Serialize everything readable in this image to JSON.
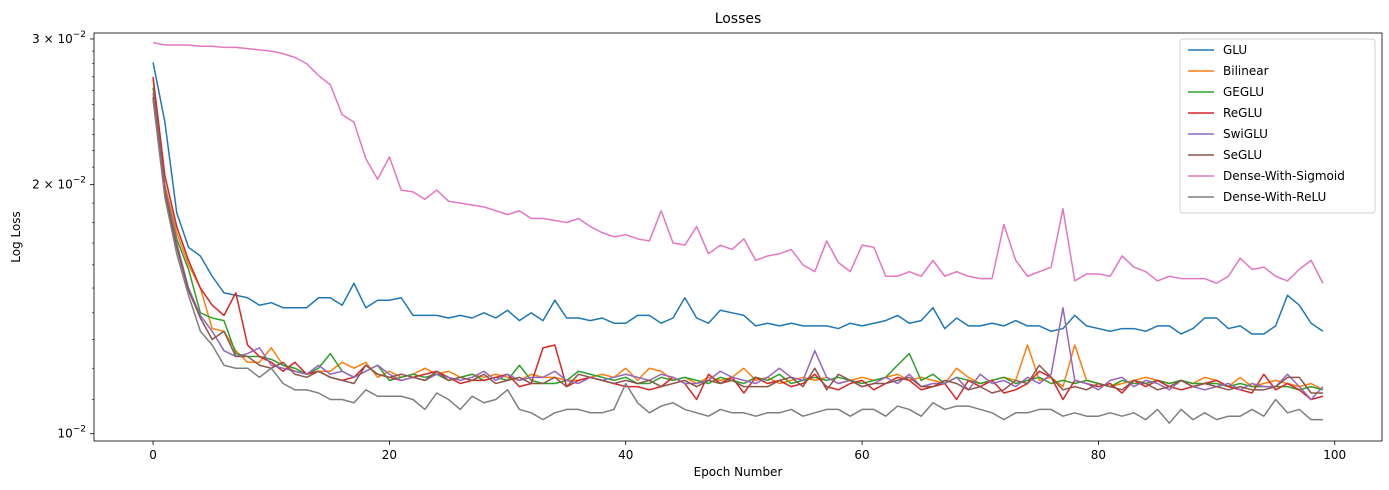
{
  "chart_data": {
    "type": "line",
    "title": "Losses",
    "xlabel": "Epoch Number",
    "ylabel": "Log Loss",
    "yscale": "log",
    "xlim": [
      -5,
      104
    ],
    "ylim": [
      0.0098,
      0.0305
    ],
    "xticks": [
      0,
      20,
      40,
      60,
      80,
      100
    ],
    "xtick_labels": [
      "0",
      "20",
      "40",
      "60",
      "80",
      "100"
    ],
    "yticks": [
      0.03,
      0.02,
      0.01
    ],
    "ytick_labels": [
      {
        "base": "3 × 10",
        "exp": "−2"
      },
      {
        "base": "2 × 10",
        "exp": "−2"
      },
      {
        "base": "10",
        "exp": "−2"
      }
    ],
    "legend_position": "top-right",
    "grid": false,
    "series": [
      {
        "name": "GLU",
        "color": "#1f77b4",
        "values": [
          0.0281,
          0.0238,
          0.0185,
          0.0168,
          0.0164,
          0.0155,
          0.0148,
          0.0147,
          0.0146,
          0.0143,
          0.0144,
          0.0142,
          0.0142,
          0.0142,
          0.0146,
          0.0146,
          0.0143,
          0.0152,
          0.0142,
          0.0145,
          0.0145,
          0.0146,
          0.0139,
          0.0139,
          0.0139,
          0.0138,
          0.0139,
          0.0138,
          0.014,
          0.0138,
          0.0141,
          0.0137,
          0.014,
          0.0137,
          0.0145,
          0.0138,
          0.0138,
          0.0137,
          0.0138,
          0.0136,
          0.0136,
          0.0139,
          0.0139,
          0.0136,
          0.0138,
          0.0146,
          0.0138,
          0.0136,
          0.0141,
          0.014,
          0.0139,
          0.0135,
          0.0136,
          0.0135,
          0.0136,
          0.0135,
          0.0135,
          0.0135,
          0.0134,
          0.0136,
          0.0135,
          0.0136,
          0.0137,
          0.0139,
          0.0136,
          0.0137,
          0.0142,
          0.0134,
          0.0138,
          0.0135,
          0.0135,
          0.0136,
          0.0135,
          0.0137,
          0.0135,
          0.0135,
          0.0133,
          0.0134,
          0.0139,
          0.0135,
          0.0134,
          0.0133,
          0.0134,
          0.0134,
          0.0133,
          0.0135,
          0.0135,
          0.0132,
          0.0134,
          0.0138,
          0.0138,
          0.0134,
          0.0135,
          0.0132,
          0.0132,
          0.0135,
          0.0147,
          0.0143,
          0.0136,
          0.0133
        ]
      },
      {
        "name": "Bilinear",
        "color": "#ff7f0e",
        "values": [
          0.0268,
          0.02,
          0.0175,
          0.016,
          0.015,
          0.0134,
          0.0133,
          0.0126,
          0.0122,
          0.0122,
          0.0127,
          0.0121,
          0.0119,
          0.0118,
          0.0119,
          0.0119,
          0.0122,
          0.012,
          0.0122,
          0.0117,
          0.0119,
          0.0117,
          0.0118,
          0.012,
          0.0118,
          0.0119,
          0.0117,
          0.0118,
          0.0117,
          0.0118,
          0.0117,
          0.0116,
          0.0118,
          0.0117,
          0.0117,
          0.0116,
          0.0116,
          0.0117,
          0.0118,
          0.0117,
          0.012,
          0.0116,
          0.012,
          0.0119,
          0.0116,
          0.0117,
          0.0115,
          0.0117,
          0.0116,
          0.0117,
          0.012,
          0.0116,
          0.0117,
          0.0115,
          0.0116,
          0.0117,
          0.0116,
          0.0117,
          0.0115,
          0.0116,
          0.0117,
          0.0116,
          0.0117,
          0.0118,
          0.0116,
          0.0117,
          0.0116,
          0.0115,
          0.012,
          0.0117,
          0.0115,
          0.0116,
          0.0117,
          0.0116,
          0.0128,
          0.0116,
          0.0117,
          0.0114,
          0.0128,
          0.0116,
          0.0115,
          0.0114,
          0.0115,
          0.0116,
          0.0117,
          0.0116,
          0.0115,
          0.0116,
          0.0115,
          0.0117,
          0.0116,
          0.0114,
          0.0117,
          0.0114,
          0.0115,
          0.0116,
          0.0115,
          0.0114,
          0.0115,
          0.0113
        ]
      },
      {
        "name": "GEGLU",
        "color": "#2ca02c",
        "values": [
          0.0262,
          0.0198,
          0.0172,
          0.0158,
          0.014,
          0.0138,
          0.0137,
          0.0125,
          0.0124,
          0.0124,
          0.0123,
          0.0121,
          0.012,
          0.0118,
          0.012,
          0.0125,
          0.0119,
          0.0117,
          0.0119,
          0.0121,
          0.0116,
          0.0117,
          0.0118,
          0.0117,
          0.0118,
          0.0116,
          0.0117,
          0.0118,
          0.0116,
          0.0117,
          0.0116,
          0.0121,
          0.0116,
          0.0115,
          0.0115,
          0.0116,
          0.0119,
          0.0118,
          0.0117,
          0.0116,
          0.0117,
          0.0115,
          0.0115,
          0.0117,
          0.0116,
          0.0117,
          0.0116,
          0.0115,
          0.0117,
          0.0116,
          0.0115,
          0.0117,
          0.0116,
          0.0118,
          0.0115,
          0.0116,
          0.0117,
          0.0116,
          0.0117,
          0.0116,
          0.0115,
          0.0116,
          0.0117,
          0.0121,
          0.0125,
          0.0116,
          0.0118,
          0.0115,
          0.0117,
          0.0116,
          0.0115,
          0.0116,
          0.0117,
          0.0115,
          0.0116,
          0.0117,
          0.0115,
          0.0116,
          0.0115,
          0.0116,
          0.0115,
          0.0114,
          0.0116,
          0.0115,
          0.0115,
          0.0116,
          0.0115,
          0.0116,
          0.0115,
          0.0115,
          0.0115,
          0.0114,
          0.0115,
          0.0114,
          0.0114,
          0.0114,
          0.0114,
          0.0113,
          0.0114,
          0.0113
        ]
      },
      {
        "name": "ReGLU",
        "color": "#d62728",
        "values": [
          0.027,
          0.0205,
          0.0178,
          0.0162,
          0.015,
          0.0143,
          0.0139,
          0.0148,
          0.0128,
          0.0124,
          0.0122,
          0.0119,
          0.0122,
          0.0118,
          0.0119,
          0.0117,
          0.0116,
          0.0117,
          0.0121,
          0.0118,
          0.0117,
          0.0116,
          0.0117,
          0.0118,
          0.0119,
          0.0117,
          0.0115,
          0.0116,
          0.0116,
          0.0117,
          0.0118,
          0.0114,
          0.0115,
          0.0127,
          0.0128,
          0.0114,
          0.0116,
          0.0117,
          0.0116,
          0.0115,
          0.0114,
          0.0114,
          0.0113,
          0.0114,
          0.0117,
          0.0115,
          0.011,
          0.0118,
          0.0115,
          0.0117,
          0.0112,
          0.0117,
          0.0115,
          0.0116,
          0.0114,
          0.0115,
          0.0118,
          0.0114,
          0.0113,
          0.0115,
          0.0116,
          0.0113,
          0.0115,
          0.0117,
          0.0116,
          0.0113,
          0.0114,
          0.0115,
          0.011,
          0.0116,
          0.0114,
          0.0116,
          0.0112,
          0.0113,
          0.0115,
          0.0119,
          0.0117,
          0.011,
          0.0116,
          0.0115,
          0.0114,
          0.0115,
          0.0112,
          0.0116,
          0.0114,
          0.0116,
          0.0114,
          0.0113,
          0.0114,
          0.0115,
          0.0116,
          0.0114,
          0.0113,
          0.0112,
          0.0118,
          0.0113,
          0.0115,
          0.0113,
          0.011,
          0.0111
        ]
      },
      {
        "name": "SwiGLU",
        "color": "#9467bd",
        "values": [
          0.0258,
          0.0198,
          0.017,
          0.015,
          0.0139,
          0.0133,
          0.0126,
          0.0124,
          0.0125,
          0.0127,
          0.0121,
          0.012,
          0.0119,
          0.0118,
          0.0121,
          0.0118,
          0.0119,
          0.0117,
          0.0119,
          0.0121,
          0.0118,
          0.0116,
          0.0117,
          0.0116,
          0.0118,
          0.0117,
          0.0116,
          0.0117,
          0.0119,
          0.0116,
          0.0118,
          0.0116,
          0.0117,
          0.0117,
          0.0119,
          0.0116,
          0.0115,
          0.0117,
          0.0116,
          0.0117,
          0.0118,
          0.0117,
          0.0116,
          0.0118,
          0.0117,
          0.0115,
          0.0115,
          0.0116,
          0.0119,
          0.0117,
          0.0116,
          0.0115,
          0.0117,
          0.012,
          0.0117,
          0.0116,
          0.0126,
          0.0117,
          0.0115,
          0.0116,
          0.0114,
          0.0115,
          0.0117,
          0.0115,
          0.0118,
          0.0114,
          0.0115,
          0.0115,
          0.0117,
          0.0113,
          0.0118,
          0.0115,
          0.0116,
          0.0114,
          0.0117,
          0.0115,
          0.0118,
          0.0142,
          0.0116,
          0.0115,
          0.0113,
          0.0116,
          0.0117,
          0.0114,
          0.0116,
          0.0115,
          0.0113,
          0.0116,
          0.0114,
          0.0113,
          0.0114,
          0.0115,
          0.0113,
          0.0115,
          0.0114,
          0.0114,
          0.0118,
          0.0114,
          0.011,
          0.0114
        ]
      },
      {
        "name": "SeGLU",
        "color": "#8c564b",
        "values": [
          0.0255,
          0.0196,
          0.0168,
          0.0149,
          0.0138,
          0.013,
          0.0133,
          0.0124,
          0.0124,
          0.0121,
          0.012,
          0.0122,
          0.0118,
          0.0117,
          0.0119,
          0.0117,
          0.0116,
          0.0115,
          0.0121,
          0.0118,
          0.0117,
          0.0118,
          0.0117,
          0.0116,
          0.0119,
          0.0116,
          0.0117,
          0.0116,
          0.0118,
          0.0115,
          0.0116,
          0.0117,
          0.0115,
          0.0115,
          0.0117,
          0.0114,
          0.0118,
          0.0117,
          0.0116,
          0.0115,
          0.0116,
          0.0115,
          0.0116,
          0.0114,
          0.0115,
          0.0116,
          0.0114,
          0.0116,
          0.0115,
          0.0116,
          0.0114,
          0.0114,
          0.0114,
          0.0116,
          0.0117,
          0.0114,
          0.012,
          0.0113,
          0.0118,
          0.0116,
          0.0114,
          0.0115,
          0.0115,
          0.0116,
          0.0117,
          0.0114,
          0.0114,
          0.0116,
          0.0115,
          0.0113,
          0.0114,
          0.0112,
          0.0113,
          0.0116,
          0.0115,
          0.0121,
          0.0117,
          0.0113,
          0.0114,
          0.0113,
          0.0115,
          0.0114,
          0.0113,
          0.0116,
          0.0115,
          0.0113,
          0.0114,
          0.0116,
          0.0114,
          0.0115,
          0.0114,
          0.0113,
          0.0114,
          0.0113,
          0.0113,
          0.0114,
          0.0117,
          0.0117,
          0.0112,
          0.0112
        ]
      },
      {
        "name": "Dense-With-Sigmoid",
        "color": "#e377c2",
        "values": [
          0.0297,
          0.0295,
          0.0295,
          0.0295,
          0.0294,
          0.0294,
          0.0293,
          0.0293,
          0.0292,
          0.0291,
          0.029,
          0.0288,
          0.0285,
          0.028,
          0.0271,
          0.0264,
          0.0243,
          0.0238,
          0.0215,
          0.0203,
          0.0216,
          0.0197,
          0.0196,
          0.0192,
          0.0197,
          0.0191,
          0.019,
          0.0189,
          0.0188,
          0.0186,
          0.0184,
          0.0186,
          0.0182,
          0.0182,
          0.0181,
          0.018,
          0.0182,
          0.0178,
          0.0175,
          0.0173,
          0.0174,
          0.0172,
          0.0171,
          0.0186,
          0.017,
          0.0169,
          0.0178,
          0.0165,
          0.0169,
          0.0167,
          0.0172,
          0.0162,
          0.0164,
          0.0165,
          0.0167,
          0.016,
          0.0157,
          0.0171,
          0.0161,
          0.0157,
          0.0169,
          0.0168,
          0.0155,
          0.0155,
          0.0157,
          0.0155,
          0.0162,
          0.0155,
          0.0157,
          0.0155,
          0.0154,
          0.0154,
          0.0179,
          0.0162,
          0.0155,
          0.0157,
          0.0159,
          0.0187,
          0.0153,
          0.0156,
          0.0156,
          0.0155,
          0.0164,
          0.0159,
          0.0157,
          0.0153,
          0.0155,
          0.0154,
          0.0154,
          0.0154,
          0.0152,
          0.0155,
          0.0163,
          0.0158,
          0.0159,
          0.0155,
          0.0153,
          0.0158,
          0.0162,
          0.0152
        ]
      },
      {
        "name": "Dense-With-ReLU",
        "color": "#7f7f7f",
        "values": [
          0.0253,
          0.0193,
          0.0165,
          0.0147,
          0.0133,
          0.0128,
          0.0121,
          0.012,
          0.012,
          0.0117,
          0.012,
          0.0115,
          0.0113,
          0.0113,
          0.0112,
          0.011,
          0.011,
          0.0109,
          0.0113,
          0.0111,
          0.0111,
          0.0111,
          0.011,
          0.0107,
          0.0112,
          0.011,
          0.0107,
          0.0111,
          0.0109,
          0.011,
          0.0113,
          0.0107,
          0.0106,
          0.0104,
          0.0106,
          0.0107,
          0.0107,
          0.0106,
          0.0106,
          0.0107,
          0.0115,
          0.0109,
          0.0106,
          0.0108,
          0.0109,
          0.0107,
          0.0106,
          0.0105,
          0.0107,
          0.0106,
          0.0106,
          0.0105,
          0.0106,
          0.0106,
          0.0107,
          0.0105,
          0.0106,
          0.0107,
          0.0107,
          0.0105,
          0.0107,
          0.0107,
          0.0105,
          0.0108,
          0.0107,
          0.0105,
          0.0109,
          0.0107,
          0.0108,
          0.0108,
          0.0107,
          0.0106,
          0.0104,
          0.0106,
          0.0106,
          0.0107,
          0.0107,
          0.0105,
          0.0106,
          0.0105,
          0.0105,
          0.0106,
          0.0105,
          0.0106,
          0.0104,
          0.0107,
          0.0103,
          0.0107,
          0.0104,
          0.0106,
          0.0104,
          0.0105,
          0.0105,
          0.0107,
          0.0105,
          0.011,
          0.0106,
          0.0107,
          0.0104,
          0.0104
        ]
      }
    ]
  }
}
